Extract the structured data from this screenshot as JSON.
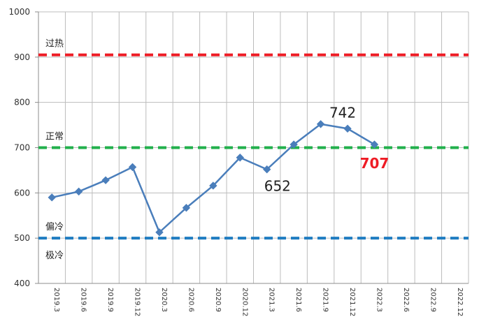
{
  "chart_data": {
    "type": "line",
    "ylim": [
      400,
      1000
    ],
    "yticks": [
      400,
      500,
      600,
      700,
      800,
      900,
      1000
    ],
    "categories": [
      "2019.3",
      "2019.6",
      "2019.9",
      "2019.12",
      "2020.3",
      "2020.6",
      "2020.9",
      "2020.12",
      "2021.3",
      "2021.6",
      "2021.9",
      "2021.12",
      "2022.3",
      "2022.6",
      "2022.9",
      "2022.12"
    ],
    "series": [
      {
        "color": "#4a7ebb",
        "marker": "diamond",
        "values": [
          590,
          603,
          628,
          657,
          513,
          567,
          616,
          678,
          652,
          707,
          752,
          742,
          707,
          null,
          null,
          null
        ]
      }
    ],
    "reference_lines": [
      {
        "value": 905,
        "label": "过热",
        "color": "#ee1c25"
      },
      {
        "value": 700,
        "label": "正常",
        "color": "#22b04c"
      },
      {
        "value": 500,
        "label": "偏冷",
        "color": "#1f7cc1"
      }
    ],
    "zone_labels": [
      {
        "value": 500,
        "label": "极冷"
      }
    ],
    "annotations": [
      {
        "category": "2021.3",
        "text": "652",
        "emphasis": false
      },
      {
        "category": "2021.12",
        "text": "742",
        "emphasis": false
      },
      {
        "category": "2022.3",
        "text": "707",
        "emphasis": true
      }
    ],
    "grid": true,
    "title": "",
    "xlabel": "",
    "ylabel": ""
  }
}
